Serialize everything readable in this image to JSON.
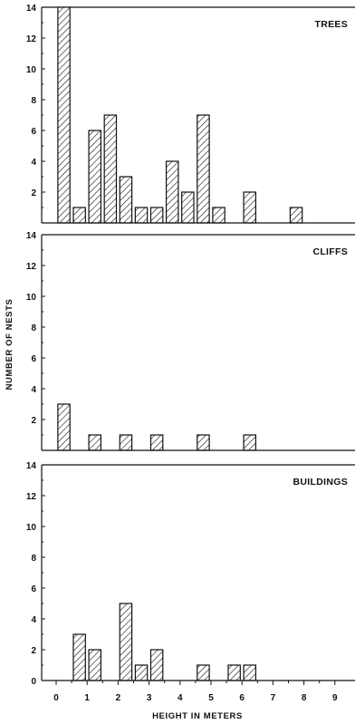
{
  "chart_data": [
    {
      "type": "bar",
      "title": "TREES",
      "ylim": [
        0,
        14
      ],
      "yticks": [
        "14",
        "12",
        "10",
        "8",
        "6",
        "4",
        "2"
      ],
      "x": [
        0.25,
        0.75,
        1.25,
        1.75,
        2.25,
        2.75,
        3.25,
        3.75,
        4.25,
        4.75,
        5.25,
        6.25,
        7.75
      ],
      "values": [
        14,
        1,
        6,
        7,
        3,
        1,
        1,
        4,
        2,
        7,
        1,
        2,
        1
      ]
    },
    {
      "type": "bar",
      "title": "CLIFFS",
      "ylim": [
        0,
        14
      ],
      "yticks": [
        "14",
        "12",
        "10",
        "8",
        "6",
        "4",
        "2"
      ],
      "x": [
        0.25,
        1.25,
        2.25,
        3.25,
        4.75,
        6.25
      ],
      "values": [
        3,
        1,
        1,
        1,
        1,
        1
      ]
    },
    {
      "type": "bar",
      "title": "BUILDINGS",
      "ylim": [
        0,
        14
      ],
      "yticks": [
        "14",
        "12",
        "10",
        "8",
        "6",
        "4",
        "2",
        "0"
      ],
      "x": [
        0.75,
        1.25,
        2.25,
        2.75,
        3.25,
        4.75,
        5.75,
        6.25
      ],
      "values": [
        3,
        2,
        5,
        1,
        2,
        1,
        1,
        1
      ]
    }
  ],
  "x_axis": {
    "xlim": [
      0,
      9
    ],
    "ticks": [
      "0",
      "1",
      "2",
      "3",
      "4",
      "5",
      "6",
      "7",
      "8",
      "9"
    ],
    "label": "HEIGHT IN METERS"
  },
  "y_axis_label": "NUMBER OF NESTS"
}
